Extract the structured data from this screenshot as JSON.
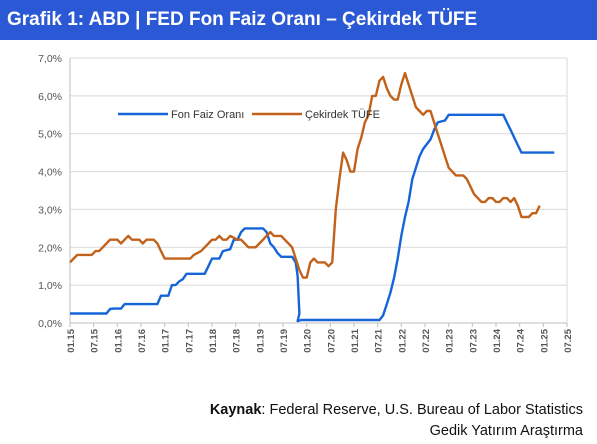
{
  "header": {
    "title": "Grafik 1: ABD | FED Fon Faiz Oranı – Çekirdek TÜFE"
  },
  "footer": {
    "source_label": "Kaynak",
    "source_text": ": Federal Reserve, U.S. Bureau of Labor Statistics",
    "credit": "Gedik Yatırım Araştırma"
  },
  "colors": {
    "fed": "#1565d8",
    "core": "#c2611a",
    "grid": "#d9d9d9",
    "axis_text": "#555555"
  },
  "chart_data": {
    "type": "line",
    "title": "",
    "xlabel": "",
    "ylabel": "",
    "ylim": [
      0,
      7
    ],
    "yticks": [
      "0,0%",
      "1,0%",
      "2,0%",
      "3,0%",
      "4,0%",
      "5,0%",
      "6,0%",
      "7,0%"
    ],
    "xticks": [
      "01.15",
      "07.15",
      "01.16",
      "07.16",
      "01.17",
      "07.17",
      "01.18",
      "07.18",
      "01.19",
      "07.19",
      "01.20",
      "07.20",
      "01.21",
      "07.21",
      "01.22",
      "07.22",
      "01.23",
      "07.23",
      "01.24",
      "07.24",
      "01.25",
      "07.25"
    ],
    "grid": true,
    "legend": "top-left",
    "series": [
      {
        "name": "Fon Faiz Oranı",
        "color": "#1565d8",
        "points": [
          [
            0,
            0.25
          ],
          [
            10,
            0.25
          ],
          [
            11,
            0.37
          ],
          [
            12,
            0.38
          ],
          [
            14,
            0.38
          ],
          [
            15,
            0.5
          ],
          [
            24,
            0.5
          ],
          [
            25,
            0.72
          ],
          [
            27,
            0.72
          ],
          [
            28,
            1.0
          ],
          [
            29,
            1.0
          ],
          [
            30,
            1.1
          ],
          [
            31,
            1.16
          ],
          [
            32,
            1.3
          ],
          [
            37,
            1.3
          ],
          [
            38,
            1.5
          ],
          [
            39,
            1.7
          ],
          [
            41,
            1.7
          ],
          [
            42,
            1.9
          ],
          [
            44,
            1.95
          ],
          [
            45,
            2.2
          ],
          [
            46,
            2.2
          ],
          [
            47,
            2.4
          ],
          [
            48,
            2.5
          ],
          [
            53,
            2.5
          ],
          [
            54,
            2.4
          ],
          [
            55,
            2.1
          ],
          [
            56,
            2.0
          ],
          [
            57,
            1.85
          ],
          [
            58,
            1.75
          ],
          [
            61,
            1.75
          ],
          [
            62,
            1.6
          ],
          [
            62.5,
            1.25
          ],
          [
            63,
            0.25
          ],
          [
            62.5,
            0.05
          ],
          [
            63.5,
            0.08
          ],
          [
            85,
            0.08
          ],
          [
            86,
            0.2
          ],
          [
            87,
            0.5
          ],
          [
            88,
            0.8
          ],
          [
            89,
            1.2
          ],
          [
            90,
            1.7
          ],
          [
            91,
            2.3
          ],
          [
            92,
            2.8
          ],
          [
            93,
            3.2
          ],
          [
            94,
            3.8
          ],
          [
            95,
            4.1
          ],
          [
            96,
            4.4
          ],
          [
            97,
            4.6
          ],
          [
            99,
            4.85
          ],
          [
            100,
            5.1
          ],
          [
            101,
            5.3
          ],
          [
            103,
            5.35
          ],
          [
            104,
            5.5
          ],
          [
            119,
            5.5
          ],
          [
            120,
            5.3
          ],
          [
            121,
            5.1
          ],
          [
            122,
            4.9
          ],
          [
            123,
            4.7
          ],
          [
            124,
            4.5
          ],
          [
            125,
            4.5
          ],
          [
            130,
            4.5
          ],
          [
            133,
            4.5
          ]
        ]
      },
      {
        "name": "Çekirdek TÜFE",
        "color": "#c2611a",
        "points": [
          [
            0,
            1.6
          ],
          [
            1,
            1.7
          ],
          [
            2,
            1.8
          ],
          [
            6,
            1.8
          ],
          [
            7,
            1.9
          ],
          [
            8,
            1.9
          ],
          [
            9,
            2.0
          ],
          [
            10,
            2.1
          ],
          [
            11,
            2.2
          ],
          [
            13,
            2.2
          ],
          [
            14,
            2.1
          ],
          [
            15,
            2.2
          ],
          [
            16,
            2.3
          ],
          [
            17,
            2.2
          ],
          [
            18,
            2.2
          ],
          [
            19,
            2.2
          ],
          [
            20,
            2.1
          ],
          [
            21,
            2.2
          ],
          [
            23,
            2.2
          ],
          [
            24,
            2.1
          ],
          [
            25,
            1.9
          ],
          [
            26,
            1.7
          ],
          [
            33,
            1.7
          ],
          [
            34,
            1.8
          ],
          [
            36,
            1.9
          ],
          [
            37,
            2.0
          ],
          [
            38,
            2.1
          ],
          [
            39,
            2.2
          ],
          [
            40,
            2.2
          ],
          [
            41,
            2.3
          ],
          [
            42,
            2.2
          ],
          [
            43,
            2.2
          ],
          [
            44,
            2.3
          ],
          [
            46,
            2.2
          ],
          [
            47,
            2.2
          ],
          [
            48,
            2.1
          ],
          [
            49,
            2.0
          ],
          [
            51,
            2.0
          ],
          [
            52,
            2.1
          ],
          [
            53,
            2.2
          ],
          [
            54,
            2.3
          ],
          [
            55,
            2.4
          ],
          [
            56,
            2.3
          ],
          [
            57,
            2.3
          ],
          [
            58,
            2.3
          ],
          [
            59,
            2.2
          ],
          [
            60,
            2.1
          ],
          [
            61,
            2.0
          ],
          [
            62,
            1.7
          ],
          [
            63,
            1.4
          ],
          [
            64,
            1.2
          ],
          [
            65,
            1.2
          ],
          [
            66,
            1.6
          ],
          [
            67,
            1.7
          ],
          [
            68,
            1.6
          ],
          [
            70,
            1.6
          ],
          [
            71,
            1.5
          ],
          [
            72,
            1.6
          ],
          [
            73,
            3.0
          ],
          [
            74,
            3.8
          ],
          [
            75,
            4.5
          ],
          [
            76,
            4.3
          ],
          [
            77,
            4.0
          ],
          [
            78,
            4.0
          ],
          [
            79,
            4.6
          ],
          [
            80,
            4.9
          ],
          [
            81,
            5.3
          ],
          [
            82,
            5.5
          ],
          [
            83,
            6.0
          ],
          [
            84,
            6.0
          ],
          [
            85,
            6.4
          ],
          [
            86,
            6.5
          ],
          [
            87,
            6.2
          ],
          [
            88,
            6.0
          ],
          [
            89,
            5.9
          ],
          [
            90,
            5.9
          ],
          [
            91,
            6.3
          ],
          [
            92,
            6.6
          ],
          [
            93,
            6.3
          ],
          [
            94,
            6.0
          ],
          [
            95,
            5.7
          ],
          [
            96,
            5.6
          ],
          [
            97,
            5.5
          ],
          [
            98,
            5.6
          ],
          [
            99,
            5.6
          ],
          [
            100,
            5.3
          ],
          [
            101,
            5.0
          ],
          [
            102,
            4.7
          ],
          [
            103,
            4.4
          ],
          [
            104,
            4.1
          ],
          [
            105,
            4.0
          ],
          [
            106,
            3.9
          ],
          [
            107,
            3.9
          ],
          [
            108,
            3.9
          ],
          [
            109,
            3.8
          ],
          [
            110,
            3.6
          ],
          [
            111,
            3.4
          ],
          [
            112,
            3.3
          ],
          [
            113,
            3.2
          ],
          [
            114,
            3.2
          ],
          [
            115,
            3.3
          ],
          [
            116,
            3.3
          ],
          [
            117,
            3.2
          ],
          [
            118,
            3.2
          ],
          [
            119,
            3.3
          ],
          [
            120,
            3.3
          ],
          [
            121,
            3.2
          ],
          [
            122,
            3.3
          ],
          [
            123,
            3.1
          ],
          [
            124,
            2.8
          ],
          [
            126,
            2.8
          ],
          [
            127,
            2.9
          ],
          [
            128,
            2.9
          ],
          [
            129,
            3.1
          ]
        ]
      }
    ]
  }
}
